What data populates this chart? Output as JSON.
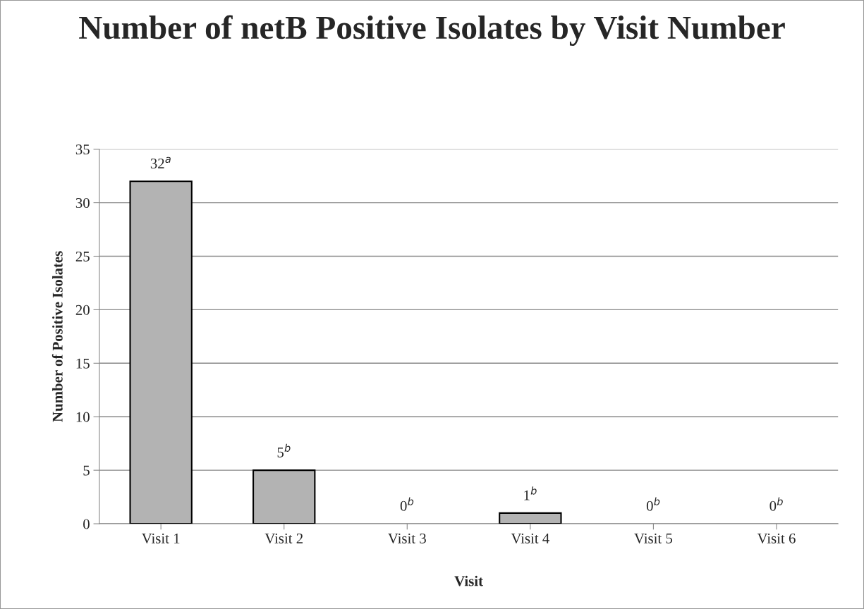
{
  "chart_data": {
    "type": "bar",
    "title": "Number of netB Positive Isolates by Visit Number",
    "xlabel": "Visit",
    "ylabel": "Number of Positive Isolates",
    "categories": [
      "Visit 1",
      "Visit 2",
      "Visit 3",
      "Visit 4",
      "Visit 5",
      "Visit 6"
    ],
    "values": [
      32,
      5,
      0,
      1,
      0,
      0
    ],
    "value_labels": [
      "32$^{a}$",
      "5$^{b}$",
      "0$^{b}$",
      "1$^{b}$",
      "0$^{b}$",
      "0$^{b}$"
    ],
    "color": "#b3b3b3",
    "ylim": [
      0,
      35
    ],
    "yticks": [
      0,
      5,
      10,
      15,
      20,
      25,
      30,
      35
    ],
    "grid": "y",
    "legend": false
  }
}
